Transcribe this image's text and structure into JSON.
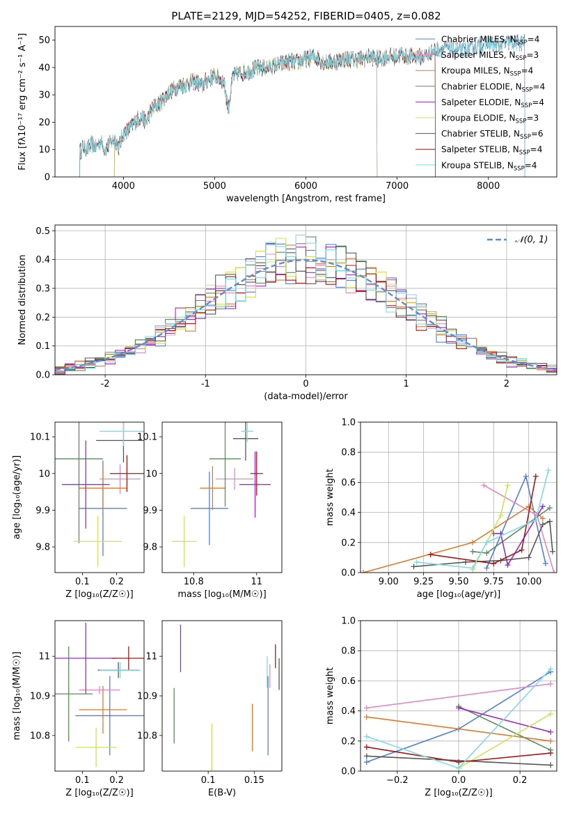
{
  "colors": {
    "chabrier_miles": "#4f7fd6",
    "salpeter_miles": "#e088c4",
    "kroupa_miles": "#dd7a2a",
    "chabrier_elodie": "#5c8a5c",
    "salpeter_elodie": "#9a2bc2",
    "kroupa_elodie": "#cfe15a",
    "chabrier_stelib": "#555555",
    "salpeter_stelib": "#a61616",
    "kroupa_stelib": "#7fdbe3",
    "normal_fit": "#5b8bd9"
  },
  "chart_data": [
    {
      "id": "spectrum",
      "type": "line",
      "title": "PLATE=2129, MJD=54252, FIBERID=0405, z=0.082",
      "xlabel": "wavelength [Angstrom, rest frame]",
      "ylabel": "Flux [fλ10⁻¹⁷ erg cm⁻² s⁻¹ A⁻¹]",
      "xlim": [
        3250,
        8750
      ],
      "ylim": [
        0,
        55
      ],
      "xticks": [
        4000,
        5000,
        6000,
        7000,
        8000
      ],
      "yticks": [
        0,
        10,
        20,
        30,
        40,
        50
      ],
      "legend_position": "top-right",
      "x": [
        3520,
        3560,
        3600,
        3650,
        3700,
        3750,
        3800,
        3850,
        3900,
        3950,
        4000,
        4050,
        4100,
        4150,
        4200,
        4250,
        4300,
        4350,
        4400,
        4450,
        4500,
        4600,
        4700,
        4800,
        4860,
        4900,
        5000,
        5100,
        5150,
        5200,
        5300,
        5400,
        5500,
        5600,
        5700,
        5800,
        5900,
        6000,
        6100,
        6200,
        6300,
        6400,
        6500,
        6600,
        6700,
        6800,
        6900,
        7000,
        7050,
        7100,
        7200,
        7300,
        7400,
        7500,
        7600,
        7700,
        7800,
        7900,
        8000,
        8100,
        8200,
        8300,
        8400
      ],
      "series": [
        {
          "name": "Chabrier MILES, N_SSP=4",
          "legend_main": "Chabrier MILES, N",
          "legend_sub": "SSP",
          "legend_tail": "=4",
          "color_key": "chabrier_miles",
          "cut_start": 3520,
          "cut_end": 8400
        },
        {
          "name": "Salpeter MILES, N_SSP=3",
          "legend_main": "Salpeter MILES, N",
          "legend_sub": "SSP",
          "legend_tail": "=3",
          "color_key": "salpeter_miles",
          "cut_start": 3520,
          "cut_end": 8400
        },
        {
          "name": "Kroupa MILES, N_SSP=4",
          "legend_main": "Kroupa MILES, N",
          "legend_sub": "SSP",
          "legend_tail": "=4",
          "color_key": "kroupa_miles",
          "cut_start": 3520,
          "cut_end": 7420
        },
        {
          "name": "Chabrier ELODIE, N_SSP=4",
          "legend_main": "Chabrier ELODIE, N",
          "legend_sub": "SSP",
          "legend_tail": "=4",
          "color_key": "chabrier_elodie",
          "cut_start": 3900,
          "cut_end": 6780
        },
        {
          "name": "Salpeter ELODIE, N_SSP=4",
          "legend_main": "Salpeter ELODIE, N",
          "legend_sub": "SSP",
          "legend_tail": "=4",
          "color_key": "salpeter_elodie",
          "cut_start": 3900,
          "cut_end": 6780
        },
        {
          "name": "Kroupa ELODIE, N_SSP=3",
          "legend_main": "Kroupa ELODIE, N",
          "legend_sub": "SSP",
          "legend_tail": "=3",
          "color_key": "kroupa_elodie",
          "cut_start": 3900,
          "cut_end": 6780
        },
        {
          "name": "Chabrier STELIB, N_SSP=6",
          "legend_main": "Chabrier STELIB, N",
          "legend_sub": "SSP",
          "legend_tail": "=6",
          "color_key": "chabrier_stelib",
          "cut_start": 3520,
          "cut_end": 8400
        },
        {
          "name": "Salpeter STELIB, N_SSP=4",
          "legend_main": "Salpeter STELIB, N",
          "legend_sub": "SSP",
          "legend_tail": "=4",
          "color_key": "salpeter_stelib",
          "cut_start": 3520,
          "cut_end": 7420
        },
        {
          "name": "Kroupa STELIB, N_SSP=4",
          "legend_main": "Kroupa STELIB, N",
          "legend_sub": "SSP",
          "legend_tail": "=4",
          "color_key": "kroupa_stelib",
          "cut_start": 3520,
          "cut_end": 8400
        }
      ],
      "y": [
        9,
        11,
        10,
        12,
        11,
        13,
        10,
        12,
        14,
        11,
        16,
        17,
        19,
        21,
        22,
        20,
        24,
        26,
        27,
        29,
        31,
        33,
        34,
        35,
        33,
        35,
        37,
        35,
        25,
        37,
        38,
        39,
        40,
        40,
        41,
        42,
        42,
        43,
        44,
        42,
        42,
        43,
        43,
        43,
        44,
        43,
        44,
        44,
        45,
        44,
        44,
        44,
        46,
        47,
        47,
        46,
        47,
        48,
        49,
        48,
        49,
        49,
        49
      ]
    },
    {
      "id": "residuals",
      "type": "histogram",
      "xlabel": "(data-model)/error",
      "ylabel": "Normed distribution",
      "xlim": [
        -2.5,
        2.5
      ],
      "ylim": [
        0,
        0.52
      ],
      "xticks": [
        -2,
        -1,
        0,
        1,
        2
      ],
      "yticks": [
        0.0,
        0.1,
        0.2,
        0.3,
        0.4,
        0.5
      ],
      "grid": true,
      "legend_position": "top-right",
      "reference_curve": {
        "name": "𝒩(0, 1)",
        "mean": 0,
        "sigma": 1
      },
      "bin_width": 0.1
    },
    {
      "id": "age_vs_Z",
      "type": "scatter",
      "xlabel": "Z [log₁₀(Z/Z☉)]",
      "ylabel": "age  [log₁₀(age/yr)]",
      "xlim": [
        0.02,
        0.28
      ],
      "ylim": [
        9.73,
        10.14
      ],
      "xticks": [
        0.1,
        0.2
      ],
      "yticks": [
        9.8,
        9.9,
        10.0,
        10.1
      ],
      "points": [
        {
          "k": "chabrier_miles",
          "x": 0.16,
          "xe": 0.07,
          "y": 9.905,
          "ye": 0.13
        },
        {
          "k": "salpeter_miles",
          "x": 0.21,
          "xe": 0.06,
          "y": 9.985,
          "ye": 0.04
        },
        {
          "k": "kroupa_miles",
          "x": 0.16,
          "xe": 0.07,
          "y": 9.96,
          "ye": 0.06
        },
        {
          "k": "chabrier_elodie",
          "x": 0.09,
          "xe": 0.07,
          "y": 10.04,
          "ye": 0.23
        },
        {
          "k": "salpeter_elodie",
          "x": 0.11,
          "xe": 0.07,
          "y": 9.97,
          "ye": 0.12
        },
        {
          "k": "kroupa_elodie",
          "x": 0.145,
          "xe": 0.07,
          "y": 9.815,
          "ye": 0.07
        },
        {
          "k": "chabrier_stelib",
          "x": 0.22,
          "xe": 0.08,
          "y": 10.09,
          "ye": 0.06
        },
        {
          "k": "salpeter_stelib",
          "x": 0.23,
          "xe": 0.05,
          "y": 10.0,
          "ye": 0.05
        },
        {
          "k": "kroupa_stelib",
          "x": 0.22,
          "xe": 0.07,
          "y": 10.115,
          "ye": 0.04
        }
      ]
    },
    {
      "id": "age_vs_mass",
      "type": "scatter",
      "xlabel": "mass [log₁₀(M/M☉)]",
      "ylabel": "",
      "xlim": [
        10.7,
        11.08
      ],
      "ylim": [
        9.73,
        10.14
      ],
      "xticks": [
        10.8,
        11.0
      ],
      "yticks": [
        9.8,
        9.9,
        10.0,
        10.1
      ],
      "points": [
        {
          "k": "chabrier_miles",
          "x": 10.85,
          "xe": 0.06,
          "y": 9.905,
          "ye": 0.1
        },
        {
          "k": "salpeter_miles",
          "x": 10.93,
          "xe": 0.06,
          "y": 9.985,
          "ye": 0.03
        },
        {
          "k": "kroupa_miles",
          "x": 10.86,
          "xe": 0.04,
          "y": 9.96,
          "ye": 0.06
        },
        {
          "k": "chabrier_elodie",
          "x": 10.9,
          "xe": 0.05,
          "y": 10.04,
          "ye": 0.13
        },
        {
          "k": "salpeter_elodie",
          "x": 10.995,
          "xe": 0.05,
          "y": 9.97,
          "ye": 0.09
        },
        {
          "k": "kroupa_elodie",
          "x": 10.77,
          "xe": 0.04,
          "y": 9.815,
          "ye": 0.07
        },
        {
          "k": "chabrier_stelib",
          "x": 10.965,
          "xe": 0.04,
          "y": 10.095,
          "ye": 0.06
        },
        {
          "k": "salpeter_stelib",
          "x": 11.0,
          "xe": 0.02,
          "y": 10.0,
          "ye": 0.06
        },
        {
          "k": "kroupa_stelib",
          "x": 10.97,
          "xe": 0.02,
          "y": 10.115,
          "ye": 0.03
        }
      ]
    },
    {
      "id": "mass_weight_vs_age",
      "type": "line",
      "xlabel": "age  [log₁₀(age/yr)]",
      "ylabel": "mass weight",
      "xlim": [
        8.8,
        10.2
      ],
      "ylim": [
        0.0,
        1.0
      ],
      "xticks": [
        9.0,
        9.25,
        9.5,
        9.75,
        10.0
      ],
      "xtick_labels": [
        "9.00",
        "9.25",
        "9.50",
        "9.75",
        "10.00"
      ],
      "yticks": [
        0.0,
        0.2,
        0.4,
        0.6,
        0.8,
        1.0
      ],
      "grid": true,
      "series": [
        {
          "k": "chabrier_miles",
          "x": [
            9.7,
            9.98,
            10.12
          ],
          "y": [
            0.03,
            0.64,
            0.06
          ]
        },
        {
          "k": "salpeter_miles",
          "x": [
            9.68,
            10.06,
            10.18
          ],
          "y": [
            0.58,
            0.38,
            0.0
          ]
        },
        {
          "k": "kroupa_miles",
          "x": [
            8.82,
            9.6,
            10.0,
            10.1
          ],
          "y": [
            0.0,
            0.2,
            0.44,
            0.36
          ]
        },
        {
          "k": "chabrier_elodie",
          "x": [
            9.6,
            9.7,
            10.15
          ],
          "y": [
            0.14,
            0.13,
            0.43
          ]
        },
        {
          "k": "salpeter_elodie",
          "x": [
            9.75,
            9.8,
            9.85,
            10.1
          ],
          "y": [
            0.26,
            0.26,
            0.05,
            0.44
          ]
        },
        {
          "k": "kroupa_elodie",
          "x": [
            9.6,
            9.8,
            9.85
          ],
          "y": [
            0.02,
            0.38,
            0.58
          ]
        },
        {
          "k": "chabrier_stelib",
          "x": [
            9.18,
            9.55,
            9.8,
            10.0,
            10.1,
            10.15,
            10.17
          ],
          "y": [
            0.04,
            0.07,
            0.08,
            0.1,
            0.32,
            0.34,
            0.14
          ]
        },
        {
          "k": "salpeter_stelib",
          "x": [
            9.3,
            9.75,
            9.95,
            10.05
          ],
          "y": [
            0.12,
            0.06,
            0.15,
            0.64
          ]
        },
        {
          "k": "kroupa_stelib",
          "x": [
            9.2,
            9.6,
            9.7,
            10.05,
            10.14
          ],
          "y": [
            0.07,
            0.03,
            0.2,
            0.35,
            0.68
          ]
        }
      ]
    },
    {
      "id": "mass_vs_Z",
      "type": "scatter",
      "xlabel": "Z [log₁₀(Z/Z☉)]",
      "ylabel": "mass [log₁₀(M/M☉)]",
      "xlim": [
        0.02,
        0.28
      ],
      "ylim": [
        10.71,
        11.09
      ],
      "xticks": [
        0.1,
        0.2
      ],
      "yticks": [
        10.8,
        10.9,
        11.0
      ],
      "points": [
        {
          "k": "chabrier_miles",
          "x": 0.18,
          "xe": 0.1,
          "y": 10.85,
          "ye": 0.1
        },
        {
          "k": "salpeter_miles",
          "x": 0.15,
          "xe": 0.06,
          "y": 10.915,
          "ye": 0.01
        },
        {
          "k": "kroupa_miles",
          "x": 0.16,
          "xe": 0.07,
          "y": 10.865,
          "ye": 0.06
        },
        {
          "k": "chabrier_elodie",
          "x": 0.06,
          "xe": 0.07,
          "y": 10.905,
          "ye": 0.12
        },
        {
          "k": "salpeter_elodie",
          "x": 0.11,
          "xe": 0.09,
          "y": 10.995,
          "ye": 0.09
        },
        {
          "k": "kroupa_elodie",
          "x": 0.14,
          "xe": 0.06,
          "y": 10.77,
          "ye": 0.05
        },
        {
          "k": "chabrier_stelib",
          "x": 0.205,
          "xe": 0.06,
          "y": 10.965,
          "ye": 0.02
        },
        {
          "k": "salpeter_stelib",
          "x": 0.235,
          "xe": 0.05,
          "y": 10.995,
          "ye": 0.03
        },
        {
          "k": "kroupa_stelib",
          "x": 0.21,
          "xe": 0.06,
          "y": 10.965,
          "ye": 0.02
        }
      ]
    },
    {
      "id": "mass_vs_ebv",
      "type": "scatter",
      "xlabel": "E(B-V)",
      "ylabel": "",
      "xlim": [
        0.05,
        0.18
      ],
      "ylim": [
        10.71,
        11.09
      ],
      "xticks": [
        0.1,
        0.15
      ],
      "yticks": [
        10.8,
        10.9,
        11.0
      ],
      "points": [
        {
          "k": "chabrier_miles",
          "x": 0.165,
          "xe": 0,
          "y": 10.85,
          "ye": 0.1
        },
        {
          "k": "salpeter_miles",
          "x": 0.167,
          "xe": 0,
          "y": 10.95,
          "ye": 0.03
        },
        {
          "k": "kroupa_miles",
          "x": 0.148,
          "xe": 0,
          "y": 10.82,
          "ye": 0.06
        },
        {
          "k": "chabrier_elodie",
          "x": 0.063,
          "xe": 0,
          "y": 10.85,
          "ye": 0.07
        },
        {
          "k": "salpeter_elodie",
          "x": 0.07,
          "xe": 0,
          "y": 11.02,
          "ye": 0.06
        },
        {
          "k": "kroupa_elodie",
          "x": 0.104,
          "xe": 0,
          "y": 10.77,
          "ye": 0.06
        },
        {
          "k": "chabrier_stelib",
          "x": 0.177,
          "xe": 0,
          "y": 10.955,
          "ye": 0.04
        },
        {
          "k": "salpeter_stelib",
          "x": 0.173,
          "xe": 0,
          "y": 11.0,
          "ye": 0.03
        },
        {
          "k": "kroupa_stelib",
          "x": 0.164,
          "xe": 0,
          "y": 10.96,
          "ye": 0.04
        }
      ]
    },
    {
      "id": "mass_weight_vs_Z",
      "type": "line",
      "xlabel": "Z [log₁₀(Z/Z☉)]",
      "ylabel": "mass weight",
      "xlim": [
        -0.32,
        0.32
      ],
      "ylim": [
        0.0,
        1.0
      ],
      "xticks": [
        -0.2,
        0.0,
        0.2
      ],
      "xtick_labels": [
        "−0.2",
        "0.0",
        "0.2"
      ],
      "yticks": [
        0.0,
        0.2,
        0.4,
        0.6,
        0.8,
        1.0
      ],
      "grid": true,
      "series": [
        {
          "k": "chabrier_miles",
          "x": [
            -0.3,
            0.0,
            0.3
          ],
          "y": [
            0.06,
            0.28,
            0.66
          ]
        },
        {
          "k": "salpeter_miles",
          "x": [
            -0.3,
            0.3
          ],
          "y": [
            0.42,
            0.58
          ]
        },
        {
          "k": "kroupa_miles",
          "x": [
            -0.3,
            0.3
          ],
          "y": [
            0.36,
            0.2
          ]
        },
        {
          "k": "chabrier_elodie",
          "x": [
            0.0,
            0.3
          ],
          "y": [
            0.43,
            0.14
          ]
        },
        {
          "k": "salpeter_elodie",
          "x": [
            0.0,
            0.3
          ],
          "y": [
            0.42,
            0.26
          ]
        },
        {
          "k": "kroupa_elodie",
          "x": [
            0.0,
            0.3
          ],
          "y": [
            0.02,
            0.38
          ]
        },
        {
          "k": "chabrier_stelib",
          "x": [
            -0.3,
            0.3
          ],
          "y": [
            0.1,
            0.04
          ]
        },
        {
          "k": "salpeter_stelib",
          "x": [
            -0.3,
            0.0,
            0.3
          ],
          "y": [
            0.16,
            0.06,
            0.12
          ]
        },
        {
          "k": "kroupa_stelib",
          "x": [
            -0.3,
            0.0,
            0.3
          ],
          "y": [
            0.23,
            0.02,
            0.68
          ]
        }
      ]
    }
  ]
}
